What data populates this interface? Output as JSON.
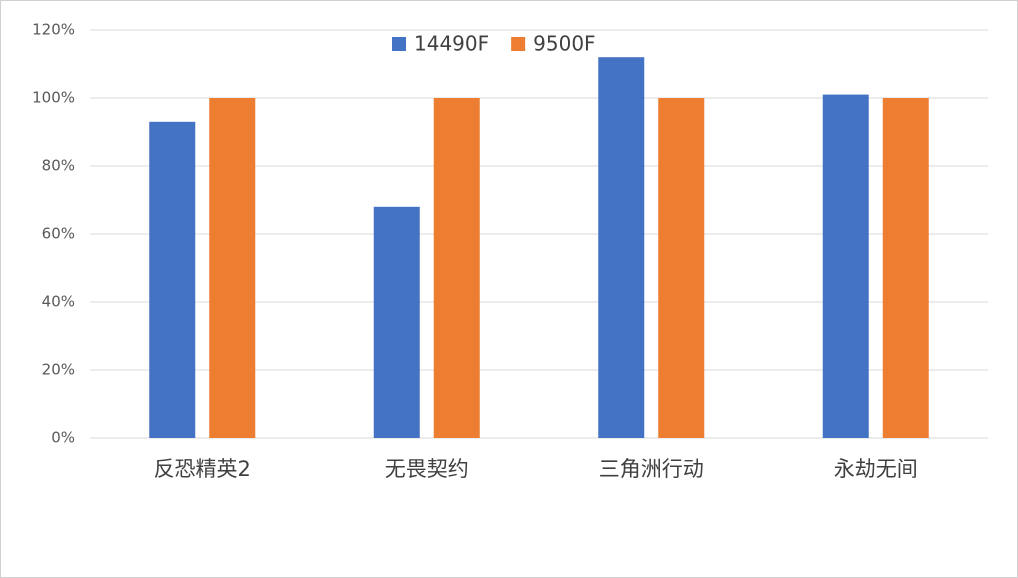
{
  "chart_data": {
    "type": "bar",
    "categories": [
      "反恐精英2",
      "无畏契约",
      "三角洲行动",
      "永劫无间"
    ],
    "series": [
      {
        "name": "14490F",
        "color": "#4472c4",
        "values": [
          93,
          68,
          112,
          101
        ]
      },
      {
        "name": "9500F",
        "color": "#ed7d31",
        "values": [
          100,
          100,
          100,
          100
        ]
      }
    ],
    "ylim": [
      0,
      120
    ],
    "yticks": [
      {
        "value": 0,
        "label": "0%"
      },
      {
        "value": 20,
        "label": "20%"
      },
      {
        "value": 40,
        "label": "40%"
      },
      {
        "value": 60,
        "label": "60%"
      },
      {
        "value": 80,
        "label": "80%"
      },
      {
        "value": 100,
        "label": "100%"
      },
      {
        "value": 120,
        "label": "120%"
      }
    ],
    "grid": true,
    "legend": "top"
  }
}
